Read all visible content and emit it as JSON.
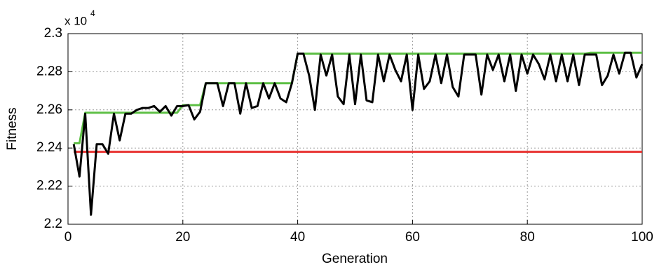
{
  "chart_data": {
    "type": "line",
    "x_label": "Generation",
    "y_label": "Fitness",
    "y_multiplier": "x 10",
    "y_multiplier_exp": "4",
    "x": [
      1,
      2,
      3,
      4,
      5,
      6,
      7,
      8,
      9,
      10,
      11,
      12,
      13,
      14,
      15,
      16,
      17,
      18,
      19,
      20,
      21,
      22,
      23,
      24,
      25,
      26,
      27,
      28,
      29,
      30,
      31,
      32,
      33,
      34,
      35,
      36,
      37,
      38,
      39,
      40,
      41,
      42,
      43,
      44,
      45,
      46,
      47,
      48,
      49,
      50,
      51,
      52,
      53,
      54,
      55,
      56,
      57,
      58,
      59,
      60,
      61,
      62,
      63,
      64,
      65,
      66,
      67,
      68,
      69,
      70,
      71,
      72,
      73,
      74,
      75,
      76,
      77,
      78,
      79,
      80,
      81,
      82,
      83,
      84,
      85,
      86,
      87,
      88,
      89,
      90,
      91,
      92,
      93,
      94,
      95,
      96,
      97,
      98,
      99,
      100
    ],
    "series": [
      {
        "color": "#e8312f",
        "values": [
          2.238,
          2.238,
          2.238,
          2.238,
          2.238,
          2.238,
          2.238,
          2.238,
          2.238,
          2.238,
          2.238,
          2.238,
          2.238,
          2.238,
          2.238,
          2.238,
          2.238,
          2.238,
          2.238,
          2.238,
          2.238,
          2.238,
          2.238,
          2.238,
          2.238,
          2.238,
          2.238,
          2.238,
          2.238,
          2.238,
          2.238,
          2.238,
          2.238,
          2.238,
          2.238,
          2.238,
          2.238,
          2.238,
          2.238,
          2.238,
          2.238,
          2.238,
          2.238,
          2.238,
          2.238,
          2.238,
          2.238,
          2.238,
          2.238,
          2.238,
          2.238,
          2.238,
          2.238,
          2.238,
          2.238,
          2.238,
          2.238,
          2.238,
          2.238,
          2.238,
          2.238,
          2.238,
          2.238,
          2.238,
          2.238,
          2.238,
          2.238,
          2.238,
          2.238,
          2.238,
          2.238,
          2.238,
          2.238,
          2.238,
          2.238,
          2.238,
          2.238,
          2.238,
          2.238,
          2.238,
          2.238,
          2.238,
          2.238,
          2.238,
          2.238,
          2.238,
          2.238,
          2.238,
          2.238,
          2.238,
          2.238,
          2.238,
          2.238,
          2.238,
          2.238,
          2.238,
          2.238,
          2.238,
          2.238,
          2.238
        ]
      },
      {
        "color": "#5dbf45",
        "values": [
          2.2425,
          2.2425,
          2.2585,
          2.2585,
          2.2585,
          2.2585,
          2.2585,
          2.2585,
          2.2585,
          2.2585,
          2.2585,
          2.2585,
          2.2585,
          2.2585,
          2.2585,
          2.2585,
          2.2585,
          2.2585,
          2.2585,
          2.2625,
          2.2625,
          2.2625,
          2.2625,
          2.274,
          2.274,
          2.274,
          2.274,
          2.274,
          2.274,
          2.274,
          2.274,
          2.274,
          2.274,
          2.274,
          2.274,
          2.274,
          2.274,
          2.274,
          2.274,
          2.2895,
          2.2895,
          2.2895,
          2.2895,
          2.2895,
          2.2895,
          2.2895,
          2.2895,
          2.2895,
          2.2895,
          2.2895,
          2.2895,
          2.2895,
          2.2895,
          2.2895,
          2.2895,
          2.2895,
          2.2895,
          2.2895,
          2.2895,
          2.2895,
          2.2895,
          2.2895,
          2.2895,
          2.2895,
          2.2895,
          2.2895,
          2.2895,
          2.2895,
          2.2895,
          2.2895,
          2.2895,
          2.2895,
          2.2895,
          2.2895,
          2.2895,
          2.2895,
          2.2895,
          2.2895,
          2.2895,
          2.2895,
          2.2895,
          2.2895,
          2.2895,
          2.2895,
          2.2895,
          2.2895,
          2.2895,
          2.2895,
          2.2895,
          2.2895,
          2.29,
          2.29,
          2.29,
          2.29,
          2.29,
          2.29,
          2.29,
          2.29,
          2.29,
          2.29
        ]
      },
      {
        "color": "#000000",
        "values": [
          2.242,
          2.225,
          2.258,
          2.205,
          2.242,
          2.242,
          2.237,
          2.258,
          2.244,
          2.258,
          2.258,
          2.26,
          2.261,
          2.261,
          2.262,
          2.259,
          2.262,
          2.257,
          2.262,
          2.262,
          2.2625,
          2.255,
          2.259,
          2.274,
          2.274,
          2.274,
          2.262,
          2.274,
          2.274,
          2.258,
          2.274,
          2.261,
          2.262,
          2.274,
          2.266,
          2.274,
          2.266,
          2.264,
          2.274,
          2.2895,
          2.2895,
          2.278,
          2.26,
          2.289,
          2.278,
          2.289,
          2.267,
          2.263,
          2.289,
          2.263,
          2.289,
          2.265,
          2.264,
          2.289,
          2.275,
          2.289,
          2.281,
          2.275,
          2.289,
          2.26,
          2.289,
          2.271,
          2.275,
          2.289,
          2.274,
          2.289,
          2.272,
          2.267,
          2.289,
          2.289,
          2.289,
          2.268,
          2.289,
          2.281,
          2.289,
          2.275,
          2.289,
          2.27,
          2.289,
          2.279,
          2.289,
          2.284,
          2.276,
          2.289,
          2.275,
          2.289,
          2.275,
          2.289,
          2.273,
          2.289,
          2.289,
          2.289,
          2.273,
          2.278,
          2.289,
          2.279,
          2.29,
          2.29,
          2.277,
          2.284
        ]
      }
    ],
    "xlim": [
      0,
      100
    ],
    "xticks": [
      0,
      20,
      40,
      60,
      80,
      100
    ],
    "ylim": [
      2.2,
      2.3
    ],
    "yticks": [
      2.2,
      2.22,
      2.24,
      2.26,
      2.28,
      2.3
    ],
    "grid": true
  }
}
